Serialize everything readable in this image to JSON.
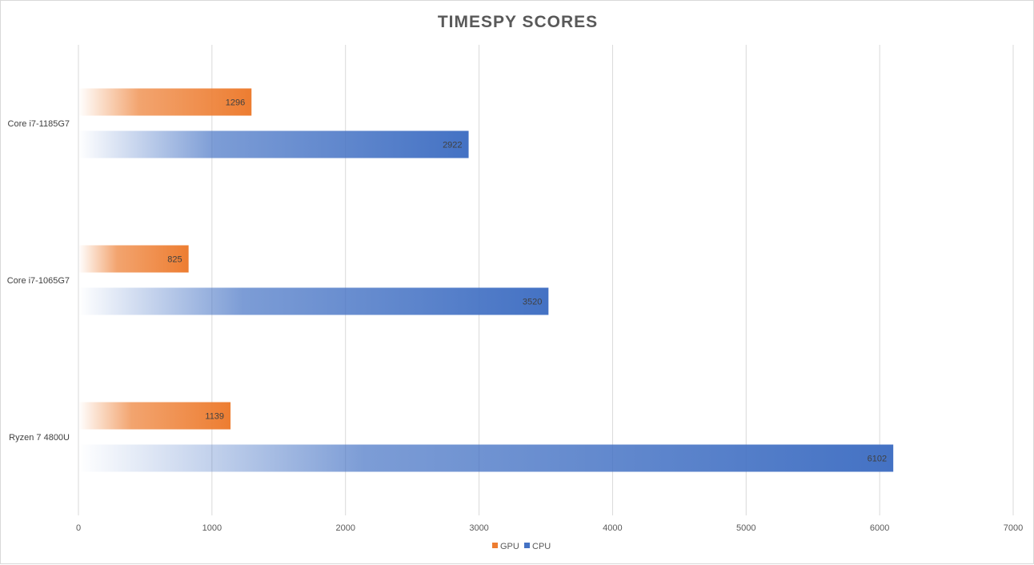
{
  "chart_data": {
    "type": "bar",
    "orientation": "horizontal",
    "title": "TIMESPY SCORES",
    "categories": [
      "Core i7-1185G7",
      "Core i7-1065G7",
      "Ryzen 7 4800U"
    ],
    "series": [
      {
        "name": "GPU",
        "color": "#ed7d31",
        "values": [
          1296,
          825,
          1139
        ]
      },
      {
        "name": "CPU",
        "color": "#4472c4",
        "values": [
          2922,
          3520,
          6102
        ]
      }
    ],
    "xlim": [
      0,
      7000
    ],
    "x_ticks": [
      0,
      1000,
      2000,
      3000,
      4000,
      5000,
      6000,
      7000
    ],
    "grid": true,
    "legend_position": "bottom",
    "data_labels": true
  }
}
